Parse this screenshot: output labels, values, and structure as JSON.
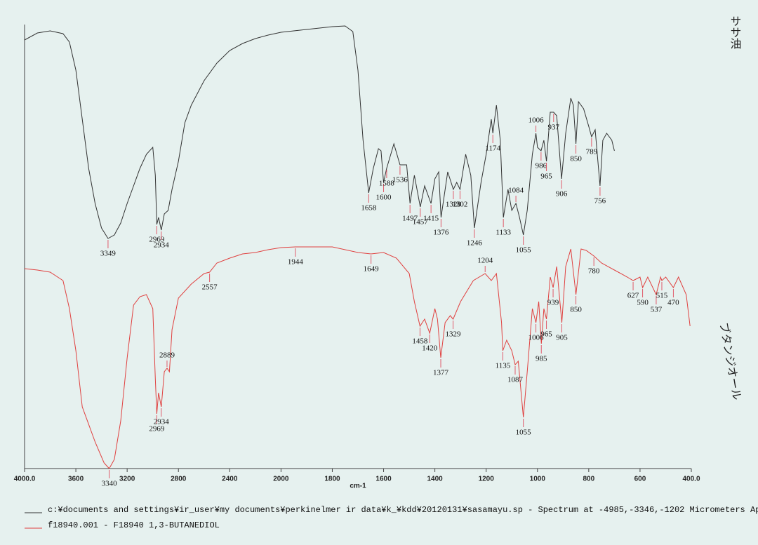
{
  "chart_data": {
    "type": "line",
    "xlabel": "cm-1",
    "xlim": [
      4000,
      400
    ],
    "xticks": [
      {
        "value": 4000,
        "label": "4000.0"
      },
      3600,
      3200,
      2800,
      2400,
      2000,
      1800,
      1600,
      1400,
      1200,
      1000,
      800,
      600,
      {
        "value": 400,
        "label": "400.0"
      }
    ],
    "x_scale_break": 2000,
    "x_scale_factor": 2,
    "ylim": [
      0,
      640
    ],
    "notes": [
      "ササ油",
      "ブタンジオール"
    ],
    "series": [
      {
        "name": "c:¥documents and settings¥ir_user¥my documents¥perkinelmer ir data¥k_¥kdd¥20120131¥sasamayu.sp - Spectrum at -4985,-3346,-1202 Micrometers  Ap",
        "color": "#333333",
        "x": [
          4000,
          3900,
          3800,
          3700,
          3650,
          3600,
          3550,
          3500,
          3450,
          3400,
          3349,
          3300,
          3250,
          3200,
          3150,
          3100,
          3050,
          3000,
          2980,
          2969,
          2955,
          2934,
          2910,
          2880,
          2850,
          2800,
          2750,
          2700,
          2600,
          2500,
          2400,
          2300,
          2200,
          2100,
          2000,
          1900,
          1800,
          1750,
          1720,
          1700,
          1680,
          1658,
          1640,
          1620,
          1610,
          1600,
          1588,
          1560,
          1536,
          1510,
          1497,
          1480,
          1457,
          1440,
          1415,
          1400,
          1385,
          1376,
          1350,
          1328,
          1315,
          1302,
          1280,
          1260,
          1246,
          1220,
          1200,
          1180,
          1174,
          1160,
          1145,
          1133,
          1115,
          1100,
          1084,
          1070,
          1055,
          1040,
          1020,
          1006,
          1000,
          986,
          975,
          965,
          950,
          937,
          925,
          906,
          890,
          870,
          860,
          850,
          840,
          820,
          800,
          789,
          775,
          756,
          745,
          730,
          710,
          700
        ],
        "values": [
          611,
          621,
          624,
          620,
          608,
          568,
          498,
          428,
          378,
          343,
          328,
          333,
          350,
          378,
          403,
          428,
          448,
          458,
          418,
          348,
          358,
          340,
          363,
          368,
          398,
          438,
          493,
          518,
          553,
          578,
          596,
          606,
          613,
          618,
          622,
          626,
          630,
          631,
          623,
          568,
          468,
          393,
          428,
          456,
          453,
          408,
          428,
          463,
          433,
          433,
          378,
          418,
          373,
          403,
          378,
          413,
          423,
          358,
          423,
          398,
          408,
          398,
          448,
          418,
          343,
          408,
          448,
          498,
          478,
          518,
          468,
          358,
          398,
          368,
          378,
          358,
          333,
          368,
          448,
          478,
          458,
          453,
          468,
          438,
          508,
          508,
          503,
          413,
          478,
          528,
          518,
          463,
          523,
          513,
          488,
          473,
          483,
          403,
          468,
          478,
          468,
          453
        ],
        "peaks": [
          3349,
          2969,
          2934,
          1658,
          1600,
          1588,
          1536,
          1497,
          1457,
          1415,
          1376,
          1328,
          1302,
          1246,
          1174,
          1133,
          1084,
          1055,
          1006,
          986,
          965,
          937,
          906,
          850,
          789,
          756
        ]
      },
      {
        "name": "f18940.001 - F18940  1,3-BUTANEDIOL",
        "color": "#e0403f",
        "x": [
          4000,
          3900,
          3800,
          3700,
          3650,
          3600,
          3550,
          3450,
          3380,
          3340,
          3300,
          3250,
          3200,
          3150,
          3100,
          3050,
          3000,
          2980,
          2969,
          2955,
          2934,
          2910,
          2889,
          2870,
          2850,
          2800,
          2700,
          2600,
          2557,
          2500,
          2400,
          2300,
          2200,
          2100,
          2000,
          1944,
          1800,
          1700,
          1649,
          1600,
          1550,
          1500,
          1480,
          1458,
          1440,
          1420,
          1400,
          1390,
          1377,
          1360,
          1340,
          1329,
          1300,
          1250,
          1204,
          1180,
          1160,
          1140,
          1135,
          1120,
          1100,
          1087,
          1075,
          1055,
          1040,
          1020,
          1006,
          995,
          985,
          975,
          965,
          950,
          939,
          925,
          905,
          890,
          870,
          850,
          830,
          810,
          780,
          750,
          700,
          650,
          627,
          600,
          590,
          570,
          537,
          520,
          515,
          500,
          470,
          450,
          420,
          405
        ],
        "values": [
          285,
          283,
          280,
          268,
          228,
          168,
          88,
          38,
          8,
          0,
          13,
          68,
          158,
          233,
          245,
          248,
          228,
          128,
          78,
          108,
          88,
          138,
          143,
          138,
          198,
          243,
          263,
          278,
          280,
          293,
          300,
          306,
          308,
          312,
          315,
          316,
          316,
          308,
          306,
          308,
          300,
          278,
          238,
          203,
          213,
          193,
          228,
          213,
          158,
          208,
          218,
          213,
          238,
          268,
          278,
          268,
          278,
          208,
          168,
          183,
          168,
          148,
          153,
          73,
          138,
          228,
          208,
          238,
          178,
          228,
          213,
          273,
          258,
          288,
          208,
          288,
          313,
          248,
          313,
          311,
          303,
          293,
          283,
          273,
          268,
          273,
          258,
          273,
          248,
          273,
          268,
          273,
          258,
          273,
          248,
          203
        ],
        "peaks": [
          3340,
          2969,
          2934,
          2889,
          2557,
          1944,
          1649,
          1458,
          1420,
          1377,
          1329,
          1204,
          1135,
          1087,
          1055,
          1006,
          985,
          965,
          939,
          905,
          850,
          780,
          627,
          590,
          537,
          515,
          470
        ]
      }
    ]
  }
}
